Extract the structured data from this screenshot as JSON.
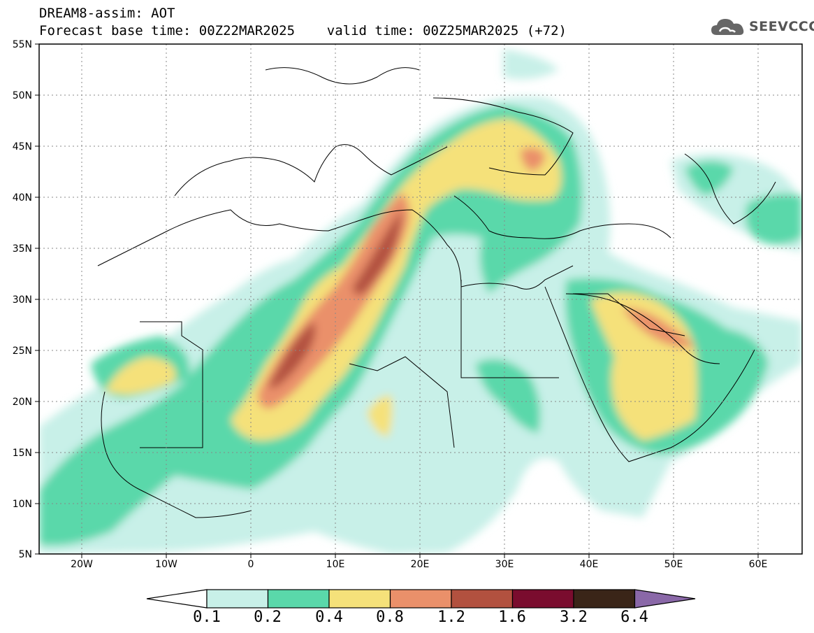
{
  "title": {
    "line1": "DREAM8-assim: AOT",
    "line2": "Forecast base time: 00Z22MAR2025    valid time: 00Z25MAR2025 (+72)"
  },
  "logo": {
    "text": "SEEVCCC",
    "icon": "cloud-icon"
  },
  "map": {
    "lon_range": [
      -25,
      65
    ],
    "lat_range": [
      5,
      55
    ],
    "lat_labels": [
      "55N",
      "50N",
      "45N",
      "40N",
      "35N",
      "30N",
      "25N",
      "20N",
      "15N",
      "10N",
      "5N"
    ],
    "lon_labels": [
      "20W",
      "10W",
      "0",
      "10E",
      "20E",
      "30E",
      "40E",
      "50E",
      "60E"
    ],
    "grid": "dotted"
  },
  "colorbar": {
    "colors": [
      "#c8f0e8",
      "#5ad8aa",
      "#f5e17a",
      "#ea906a",
      "#b2513f",
      "#7a0c2e",
      "#3a2518",
      "#8a68a8"
    ],
    "labels": [
      "0.1",
      "0.2",
      "0.4",
      "0.8",
      "1.2",
      "1.6",
      "3.2",
      "6.4"
    ]
  }
}
